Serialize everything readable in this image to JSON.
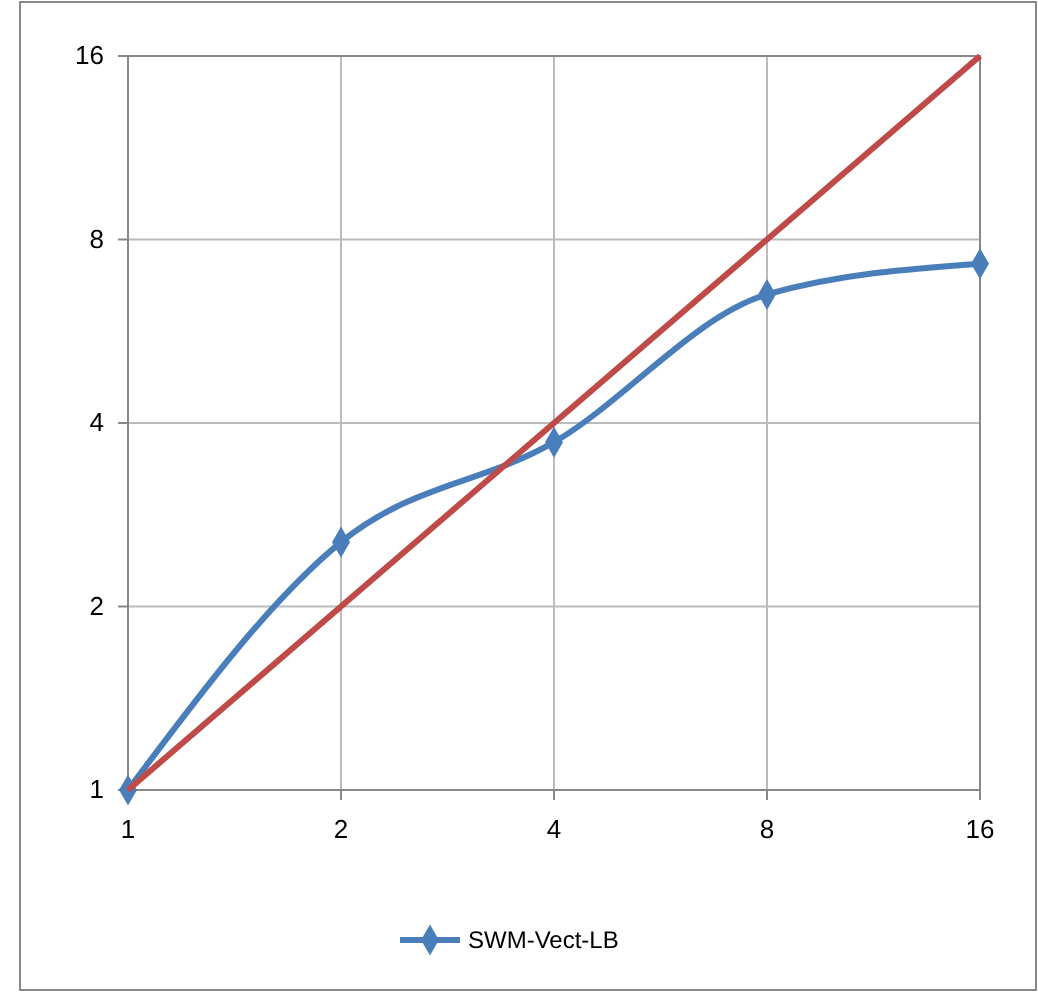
{
  "chart_data": {
    "type": "line",
    "log": "xy",
    "x": [
      1,
      2,
      4,
      8,
      16
    ],
    "xlim": [
      1,
      16
    ],
    "xticks": [
      1,
      2,
      4,
      8,
      16
    ],
    "ylim": [
      1,
      16
    ],
    "yticks": [
      1,
      2,
      4,
      8,
      16
    ],
    "grid": true,
    "legend": "bottom",
    "series": [
      {
        "name": "SWM-Vect-LB",
        "color": "#4a7ebb",
        "values": [
          1,
          2.55,
          3.72,
          6.5,
          7.3
        ],
        "marker": "diamond"
      },
      {
        "color": "#be4b48",
        "values": [
          1,
          2,
          4,
          8,
          16
        ],
        "marker": "none"
      }
    ]
  }
}
